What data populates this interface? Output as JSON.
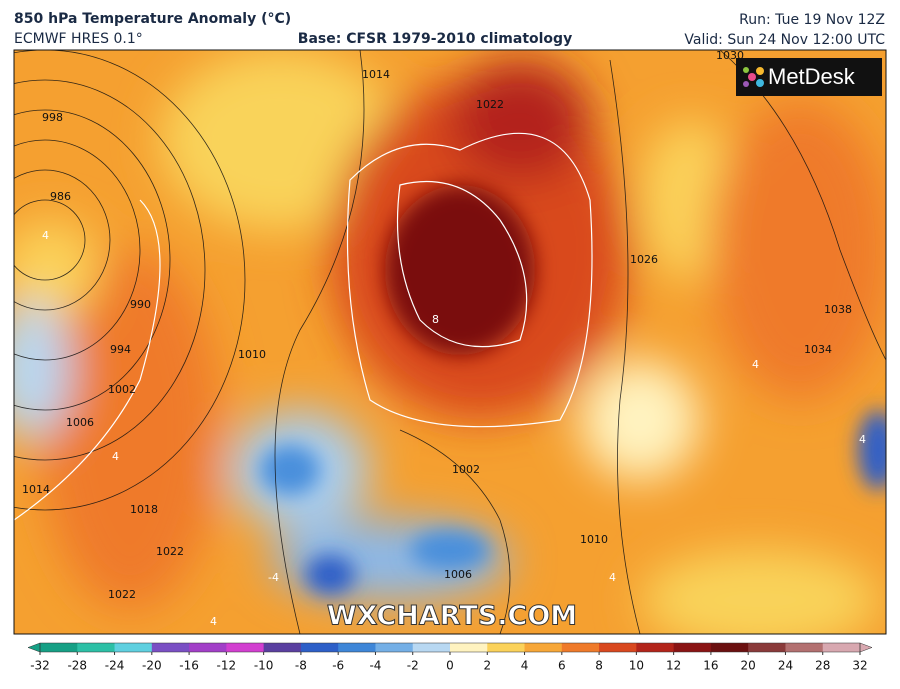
{
  "header": {
    "title": "850 hPa Temperature Anomaly (°C)",
    "model": "ECMWF HRES 0.1°",
    "base": "Base: CFSR 1979-2010 climatology",
    "run": "Run: Tue 19 Nov 12Z",
    "valid": "Valid: Sun 24 Nov 12:00 UTC"
  },
  "logo": "MetDesk",
  "watermark": "WXCHARTS.COM",
  "isobar_labels": [
    998,
    986,
    990,
    994,
    1002,
    1006,
    1010,
    1014,
    1014,
    1018,
    1022,
    1022,
    1026,
    1030,
    1038,
    1034,
    1002,
    1006,
    1010,
    1022
  ],
  "anomaly_labels": [
    8,
    4,
    4,
    -4,
    4,
    4,
    4,
    4
  ],
  "colorbar": {
    "ticks": [
      -32,
      -28,
      -24,
      -20,
      -16,
      -12,
      -10,
      -8,
      -6,
      -4,
      -2,
      0,
      2,
      4,
      6,
      8,
      10,
      12,
      16,
      20,
      24,
      28,
      32
    ],
    "colors": [
      "#16a085",
      "#2cc0a6",
      "#5fd0e0",
      "#7a4fc4",
      "#a23fc8",
      "#d23fd0",
      "#5a3fa0",
      "#2d5fc8",
      "#3e86d8",
      "#74afe6",
      "#b8d8f2",
      "#fff3c0",
      "#fbd25a",
      "#f7a738",
      "#ef7a2a",
      "#d9481f",
      "#b3241a",
      "#8a1414",
      "#6b1010",
      "#8a3a3a",
      "#b37070",
      "#d8a8b0"
    ]
  }
}
